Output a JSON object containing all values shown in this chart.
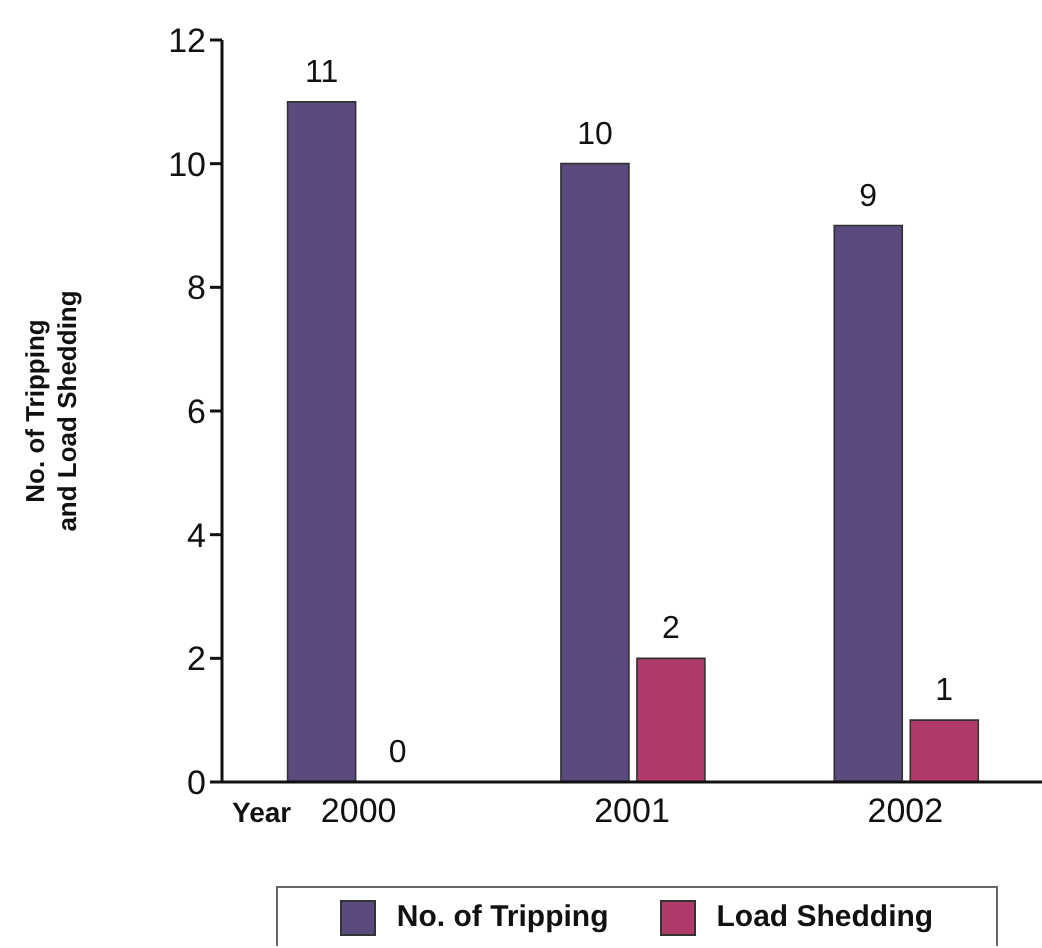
{
  "chart_data": {
    "type": "bar",
    "ylabel": "No. of Tripping\nand Load Shedding",
    "xlabel": "Year",
    "categories": [
      "2000",
      "2001",
      "2002"
    ],
    "series": [
      {
        "name": "No. of Tripping",
        "color": "#5a4a7e",
        "values": [
          11,
          10,
          9
        ]
      },
      {
        "name": "Load Shedding",
        "color": "#b03a6a",
        "values": [
          0,
          2,
          1
        ]
      }
    ],
    "ylim": [
      0,
      12
    ],
    "yticks": [
      0,
      2,
      4,
      6,
      8,
      10,
      12
    ],
    "data_labels": true,
    "legend": "bottom",
    "grid": false
  }
}
